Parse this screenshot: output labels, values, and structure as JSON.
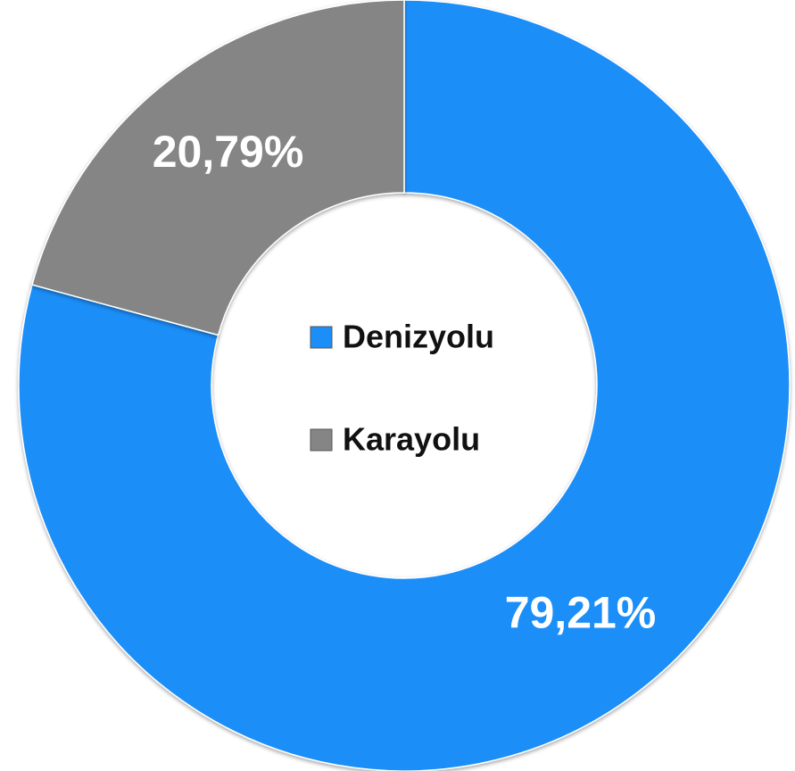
{
  "chart_data": {
    "type": "donut",
    "categories": [
      "Denizyolu",
      "Karayolu"
    ],
    "values": [
      79.21,
      20.79
    ],
    "value_labels": [
      "79,21%",
      "20,79%"
    ],
    "colors": [
      "#1b8ef8",
      "#858585"
    ],
    "legend": "center"
  }
}
